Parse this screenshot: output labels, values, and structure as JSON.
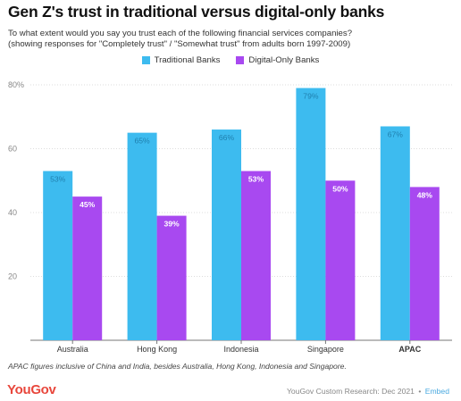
{
  "header": {
    "title": "Gen Z's trust in traditional versus digital-only banks",
    "subtitle_line1": "To what extent would you say you trust each of the following financial services companies?",
    "subtitle_line2": "(showing responses for \"Completely trust\" / \"Somewhat trust\" from adults born 1997-2009)"
  },
  "colors": {
    "traditional": "#3dbbef",
    "digital": "#a849f0",
    "grid": "#dddddd",
    "axis": "#777777",
    "brand": "#e8473c",
    "embed_link": "#4aa9e0"
  },
  "chart_data": {
    "type": "bar",
    "categories": [
      "Australia",
      "Hong Kong",
      "Indonesia",
      "Singapore",
      "APAC"
    ],
    "emphasized_category": "APAC",
    "series": [
      {
        "name": "Traditional Banks",
        "values": [
          53,
          65,
          66,
          79,
          67
        ],
        "labels": [
          "53%",
          "65%",
          "66%",
          "79%",
          "67%"
        ]
      },
      {
        "name": "Digital-Only Banks",
        "values": [
          45,
          39,
          53,
          50,
          48
        ],
        "labels": [
          "45%",
          "39%",
          "53%",
          "50%",
          "48%"
        ]
      }
    ],
    "ylim": [
      0,
      80
    ],
    "yticks": [
      20,
      40,
      60,
      80
    ],
    "ytick_labels": [
      "20",
      "40",
      "60",
      "80%"
    ],
    "grid": true,
    "legend_position": "top-center"
  },
  "footer": {
    "footnote": "APAC figures inclusive of China and India, besides Australia, Hong Kong, Indonesia and Singapore.",
    "logo": "YouGov",
    "source": "YouGov Custom Research: Dec 2021",
    "separator": "•",
    "embed": "Embed"
  }
}
